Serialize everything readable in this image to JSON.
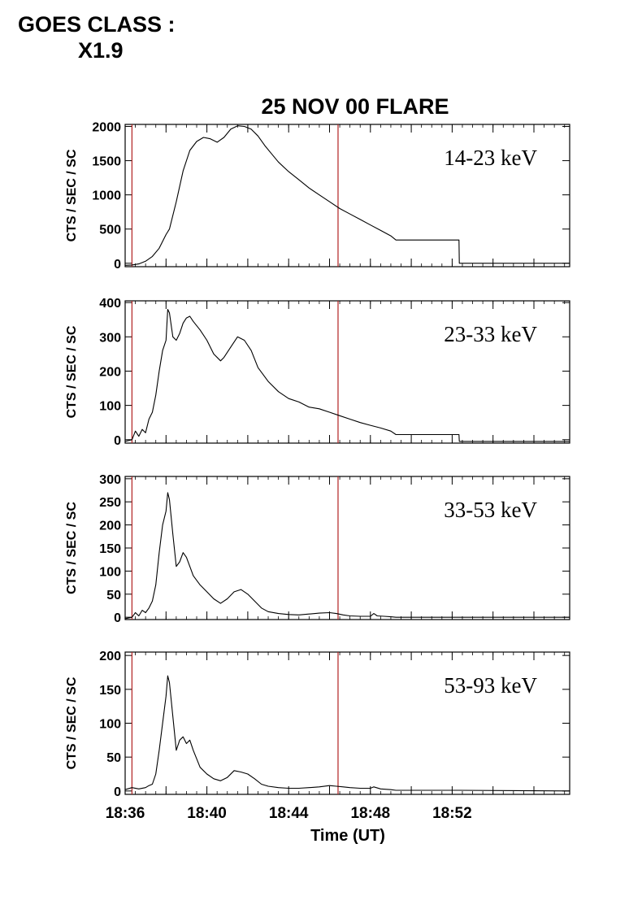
{
  "header": {
    "goes_label": "GOES CLASS :",
    "goes_value": "X1.9"
  },
  "chart_data": {
    "type": "line",
    "title": "25 NOV 00 FLARE",
    "xlabel": "Time (UT)",
    "x_unit": "UT",
    "xlim": [
      "18:36:00",
      "18:57:45"
    ],
    "x_ticks": [
      "18:36",
      "18:40",
      "18:44",
      "18:48",
      "18:52"
    ],
    "vertical_markers": [
      "18:36:20",
      "18:46:25"
    ],
    "colors": {
      "line": "#000000",
      "marker": "#b22222",
      "axis": "#000000"
    },
    "panels": [
      {
        "label": "14-23 keV",
        "ylabel": "CTS / SEC / SC",
        "ylim": [
          -50,
          2030
        ],
        "yticks": [
          0,
          500,
          1000,
          1500,
          2000
        ],
        "series": {
          "x": [
            "18:36:00",
            "18:36:20",
            "18:36:40",
            "18:37:00",
            "18:37:20",
            "18:37:40",
            "18:38:00",
            "18:38:10",
            "18:38:30",
            "18:38:50",
            "18:39:10",
            "18:39:30",
            "18:39:50",
            "18:40:10",
            "18:40:30",
            "18:40:50",
            "18:41:10",
            "18:41:30",
            "18:41:50",
            "18:42:10",
            "18:42:30",
            "18:42:50",
            "18:43:10",
            "18:43:30",
            "18:44:00",
            "18:44:30",
            "18:45:00",
            "18:45:30",
            "18:46:00",
            "18:46:30",
            "18:47:00",
            "18:47:30",
            "18:48:00",
            "18:48:30",
            "18:49:00",
            "18:49:15",
            "18:52:20",
            "18:52:21",
            "18:57:45"
          ],
          "y": [
            -30,
            -25,
            -10,
            30,
            100,
            220,
            420,
            500,
            900,
            1350,
            1650,
            1780,
            1840,
            1820,
            1770,
            1840,
            1960,
            2010,
            2000,
            1960,
            1860,
            1720,
            1600,
            1480,
            1340,
            1220,
            1100,
            1000,
            900,
            800,
            720,
            640,
            560,
            480,
            400,
            340,
            340,
            0,
            0
          ]
        }
      },
      {
        "label": "23-33 keV",
        "ylabel": "CTS / SEC / SC",
        "ylim": [
          -10,
          405
        ],
        "yticks": [
          0,
          100,
          200,
          300,
          400
        ],
        "series": {
          "x": [
            "18:36:00",
            "18:36:20",
            "18:36:30",
            "18:36:40",
            "18:36:50",
            "18:37:00",
            "18:37:10",
            "18:37:20",
            "18:37:30",
            "18:37:40",
            "18:37:50",
            "18:38:00",
            "18:38:05",
            "18:38:10",
            "18:38:20",
            "18:38:30",
            "18:38:40",
            "18:38:50",
            "18:39:00",
            "18:39:10",
            "18:39:20",
            "18:39:40",
            "18:40:00",
            "18:40:20",
            "18:40:40",
            "18:40:50",
            "18:41:10",
            "18:41:30",
            "18:41:50",
            "18:42:10",
            "18:42:30",
            "18:43:00",
            "18:43:30",
            "18:44:00",
            "18:44:30",
            "18:45:00",
            "18:45:30",
            "18:46:00",
            "18:46:30",
            "18:47:00",
            "18:47:30",
            "18:48:00",
            "18:48:30",
            "18:49:00",
            "18:49:15",
            "18:52:20",
            "18:52:21",
            "18:57:45"
          ],
          "y": [
            -5,
            0,
            25,
            10,
            30,
            20,
            60,
            80,
            130,
            200,
            260,
            290,
            380,
            370,
            300,
            290,
            310,
            340,
            355,
            360,
            345,
            320,
            290,
            250,
            230,
            240,
            270,
            300,
            290,
            260,
            210,
            170,
            140,
            120,
            110,
            95,
            90,
            80,
            70,
            60,
            50,
            42,
            34,
            25,
            15,
            15,
            -5,
            -5
          ]
        }
      },
      {
        "label": "33-53 keV",
        "ylabel": "CTS / SEC / SC",
        "ylim": [
          -5,
          305
        ],
        "yticks": [
          0,
          50,
          100,
          150,
          200,
          250,
          300
        ],
        "series": {
          "x": [
            "18:36:00",
            "18:36:20",
            "18:36:30",
            "18:36:40",
            "18:36:50",
            "18:37:00",
            "18:37:10",
            "18:37:20",
            "18:37:30",
            "18:37:40",
            "18:37:50",
            "18:38:00",
            "18:38:05",
            "18:38:10",
            "18:38:20",
            "18:38:30",
            "18:38:40",
            "18:38:50",
            "18:39:00",
            "18:39:10",
            "18:39:20",
            "18:39:40",
            "18:40:00",
            "18:40:20",
            "18:40:40",
            "18:41:00",
            "18:41:20",
            "18:41:40",
            "18:42:00",
            "18:42:20",
            "18:42:40",
            "18:43:00",
            "18:43:30",
            "18:44:00",
            "18:44:30",
            "18:45:00",
            "18:45:30",
            "18:46:00",
            "18:46:20",
            "18:46:40",
            "18:47:00",
            "18:47:30",
            "18:48:00",
            "18:48:10",
            "18:48:20",
            "18:48:40",
            "18:49:00",
            "18:49:15",
            "18:52:20",
            "18:57:45"
          ],
          "y": [
            -3,
            0,
            10,
            3,
            15,
            10,
            20,
            35,
            70,
            140,
            200,
            230,
            270,
            255,
            180,
            110,
            120,
            140,
            130,
            110,
            90,
            70,
            55,
            40,
            30,
            40,
            55,
            60,
            50,
            35,
            20,
            12,
            8,
            6,
            5,
            7,
            9,
            10,
            8,
            5,
            3,
            2,
            2,
            8,
            3,
            2,
            1,
            0,
            0,
            0
          ]
        }
      },
      {
        "label": "53-93 keV",
        "ylabel": "CTS / SEC / SC",
        "ylim": [
          -5,
          205
        ],
        "yticks": [
          0,
          50,
          100,
          150,
          200
        ],
        "series": {
          "x": [
            "18:36:00",
            "18:36:20",
            "18:36:40",
            "18:37:00",
            "18:37:10",
            "18:37:20",
            "18:37:30",
            "18:37:40",
            "18:37:50",
            "18:38:00",
            "18:38:05",
            "18:38:10",
            "18:38:20",
            "18:38:30",
            "18:38:40",
            "18:38:50",
            "18:39:00",
            "18:39:10",
            "18:39:20",
            "18:39:40",
            "18:40:00",
            "18:40:20",
            "18:40:40",
            "18:41:00",
            "18:41:20",
            "18:41:40",
            "18:42:00",
            "18:42:20",
            "18:42:40",
            "18:43:00",
            "18:43:30",
            "18:44:00",
            "18:44:30",
            "18:45:00",
            "18:45:30",
            "18:46:00",
            "18:46:20",
            "18:46:40",
            "18:47:00",
            "18:47:30",
            "18:48:00",
            "18:48:10",
            "18:48:30",
            "18:49:00",
            "18:49:15",
            "18:52:20",
            "18:57:45"
          ],
          "y": [
            2,
            5,
            3,
            5,
            8,
            10,
            25,
            60,
            100,
            140,
            170,
            160,
            110,
            60,
            75,
            80,
            70,
            75,
            60,
            35,
            25,
            18,
            15,
            20,
            30,
            28,
            25,
            18,
            10,
            7,
            5,
            4,
            4,
            5,
            6,
            8,
            7,
            6,
            5,
            4,
            4,
            6,
            3,
            2,
            1,
            1,
            0
          ]
        }
      }
    ]
  }
}
